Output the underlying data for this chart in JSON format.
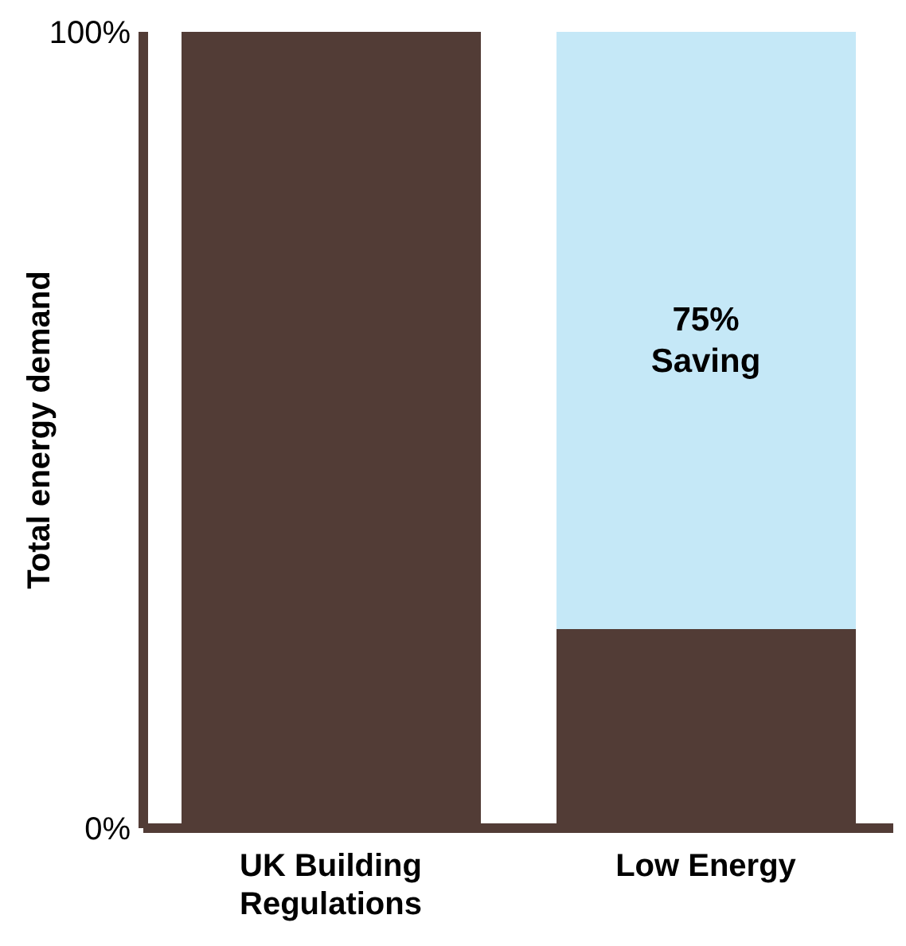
{
  "chart_data": {
    "type": "bar",
    "stacked": true,
    "ylabel": "Total energy demand",
    "categories": [
      "UK Building Regulations",
      "Low Energy"
    ],
    "series": [
      {
        "color": "#523c36",
        "values": [
          100,
          25
        ]
      },
      {
        "color": "#c5e8f7",
        "values": [
          0,
          75
        ]
      }
    ],
    "ylim": [
      0,
      100
    ],
    "yticks": [
      {
        "value": 0,
        "label": "0%"
      },
      {
        "value": 100,
        "label": "100%"
      }
    ],
    "annotations": [
      "75% Saving"
    ]
  }
}
